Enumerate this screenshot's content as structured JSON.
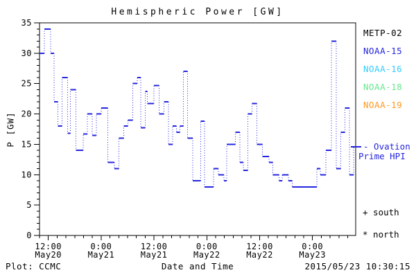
{
  "title": "Hemispheric Power [GW]",
  "footer": {
    "plot_credit": "Plot: CCMC",
    "timestamp": "2015/05/23 10:30:15"
  },
  "annotations": {
    "ovation_line1": "- Ovation",
    "ovation_line2": "Prime HPI",
    "south_label": "+ south",
    "north_label": "* north"
  },
  "legend": {
    "items": [
      {
        "label": "METP-02",
        "color": "#000000"
      },
      {
        "label": "NOAA-15",
        "color": "#2424dd"
      },
      {
        "label": "NOAA-16",
        "color": "#33ccff"
      },
      {
        "label": "NOAA-18",
        "color": "#66e88e"
      },
      {
        "label": "NOAA-19",
        "color": "#ff9922"
      }
    ]
  },
  "chart_data": {
    "type": "line",
    "style": "step",
    "title": "Hemispheric Power [GW]",
    "xlabel": "Date and Time",
    "ylabel": "P [GW]",
    "ylim": [
      0,
      35
    ],
    "y_major_tick_step": 5,
    "y_minor_tick_step": 1,
    "y_ticks": [
      0,
      5,
      10,
      15,
      20,
      25,
      30,
      35
    ],
    "xlim_hours_from_may20_0000": [
      10.0,
      81.8
    ],
    "x_minor_tick_step_hours": 2,
    "x_major_ticks": [
      {
        "hour": 12,
        "time": "12:00",
        "date": "May20"
      },
      {
        "hour": 24,
        "time": "0:00",
        "date": "May21"
      },
      {
        "hour": 36,
        "time": "12:00",
        "date": "May21"
      },
      {
        "hour": 48,
        "time": "0:00",
        "date": "May22"
      },
      {
        "hour": 60,
        "time": "12:00",
        "date": "May22"
      },
      {
        "hour": 72,
        "time": "0:00",
        "date": "May23"
      }
    ],
    "grid": false,
    "legend_position": "right-outside",
    "series": [
      {
        "name": "Ovation Prime HPI (NOAA-15)",
        "color": "#2424dd",
        "units": "GW",
        "t_end_hours": 81.8,
        "ovation_marker_gw": 14.6,
        "step_points": [
          [
            10.0,
            30
          ],
          [
            11.1,
            34
          ],
          [
            12.5,
            30
          ],
          [
            13.3,
            22
          ],
          [
            14.2,
            18
          ],
          [
            15.1,
            26
          ],
          [
            16.4,
            16.8
          ],
          [
            17.0,
            24
          ],
          [
            18.3,
            14
          ],
          [
            19.9,
            16.7
          ],
          [
            20.9,
            20
          ],
          [
            22.0,
            16.5
          ],
          [
            22.9,
            20
          ],
          [
            24.0,
            21
          ],
          [
            25.5,
            12
          ],
          [
            27.0,
            11
          ],
          [
            28.0,
            16
          ],
          [
            29.1,
            18
          ],
          [
            30.1,
            19
          ],
          [
            31.2,
            25
          ],
          [
            32.2,
            26
          ],
          [
            33.0,
            17.7
          ],
          [
            34.0,
            23.7
          ],
          [
            34.5,
            21.7
          ],
          [
            36.0,
            24.7
          ],
          [
            37.2,
            20
          ],
          [
            38.3,
            22
          ],
          [
            39.3,
            15
          ],
          [
            40.2,
            18
          ],
          [
            41.1,
            17
          ],
          [
            41.9,
            18
          ],
          [
            42.7,
            27
          ],
          [
            43.6,
            16
          ],
          [
            44.8,
            9
          ],
          [
            46.6,
            18.8
          ],
          [
            47.5,
            8
          ],
          [
            49.5,
            11
          ],
          [
            50.6,
            10
          ],
          [
            51.9,
            9
          ],
          [
            52.5,
            15
          ],
          [
            54.5,
            17
          ],
          [
            55.5,
            12
          ],
          [
            56.3,
            10.7
          ],
          [
            57.3,
            20
          ],
          [
            58.3,
            21.7
          ],
          [
            59.4,
            15
          ],
          [
            60.6,
            13
          ],
          [
            62.1,
            12
          ],
          [
            63.0,
            10
          ],
          [
            64.4,
            9
          ],
          [
            65.1,
            10
          ],
          [
            66.5,
            9
          ],
          [
            67.4,
            8
          ],
          [
            73.0,
            11
          ],
          [
            73.8,
            10
          ],
          [
            75.0,
            14
          ],
          [
            76.3,
            32
          ],
          [
            77.4,
            11
          ],
          [
            78.4,
            17
          ],
          [
            79.4,
            21
          ],
          [
            80.4,
            10
          ],
          [
            81.3,
            14.6
          ]
        ]
      }
    ]
  }
}
